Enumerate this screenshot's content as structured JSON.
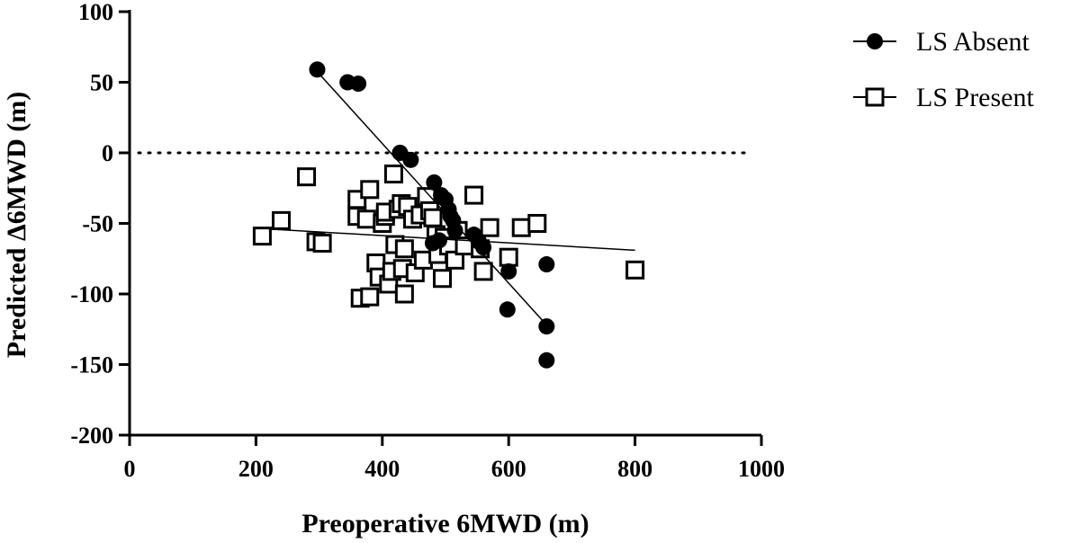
{
  "chart_data": {
    "type": "scatter",
    "title": "",
    "xlabel": "Preoperative 6MWD (m)",
    "ylabel": "Predicted Δ6MWD (m)",
    "xlim": [
      0,
      1000
    ],
    "ylim": [
      -200,
      100
    ],
    "xticks": [
      0,
      200,
      400,
      600,
      800,
      1000
    ],
    "yticks": [
      100,
      50,
      0,
      -50,
      -100,
      -150,
      -200
    ],
    "reference_line_y": 0,
    "legend_position": "top-right",
    "series": [
      {
        "name": "LS Absent",
        "marker": "filled-circle",
        "color": "#000000",
        "trendline": {
          "x": [
            300,
            660
          ],
          "y": [
            56,
            -122
          ]
        },
        "points": [
          [
            297,
            59
          ],
          [
            345,
            50
          ],
          [
            362,
            49
          ],
          [
            428,
            0
          ],
          [
            445,
            -5
          ],
          [
            482,
            -21
          ],
          [
            493,
            -30
          ],
          [
            500,
            -33
          ],
          [
            505,
            -40
          ],
          [
            508,
            -45
          ],
          [
            512,
            -48
          ],
          [
            515,
            -55
          ],
          [
            490,
            -62
          ],
          [
            480,
            -64
          ],
          [
            545,
            -58
          ],
          [
            553,
            -63
          ],
          [
            560,
            -67
          ],
          [
            600,
            -84
          ],
          [
            598,
            -111
          ],
          [
            660,
            -79
          ],
          [
            660,
            -123
          ],
          [
            660,
            -147
          ]
        ]
      },
      {
        "name": "LS Present",
        "marker": "open-square",
        "color": "#000000",
        "trendline": {
          "x": [
            220,
            800
          ],
          "y": [
            -54,
            -69
          ]
        },
        "points": [
          [
            210,
            -59
          ],
          [
            240,
            -48
          ],
          [
            280,
            -17
          ],
          [
            295,
            -63
          ],
          [
            305,
            -64
          ],
          [
            360,
            -33
          ],
          [
            360,
            -45
          ],
          [
            365,
            -103
          ],
          [
            375,
            -47
          ],
          [
            380,
            -102
          ],
          [
            380,
            -26
          ],
          [
            390,
            -78
          ],
          [
            395,
            -88
          ],
          [
            400,
            -50
          ],
          [
            405,
            -45
          ],
          [
            405,
            -42
          ],
          [
            410,
            -93
          ],
          [
            415,
            -84
          ],
          [
            418,
            -15
          ],
          [
            420,
            -65
          ],
          [
            425,
            -40
          ],
          [
            430,
            -36
          ],
          [
            432,
            -82
          ],
          [
            435,
            -68
          ],
          [
            435,
            -100
          ],
          [
            440,
            -38
          ],
          [
            448,
            -47
          ],
          [
            452,
            -85
          ],
          [
            460,
            -44
          ],
          [
            465,
            -76
          ],
          [
            470,
            -31
          ],
          [
            475,
            -41
          ],
          [
            480,
            -46
          ],
          [
            485,
            -58
          ],
          [
            488,
            -72
          ],
          [
            495,
            -89
          ],
          [
            498,
            -60
          ],
          [
            505,
            -66
          ],
          [
            515,
            -76
          ],
          [
            520,
            -55
          ],
          [
            530,
            -66
          ],
          [
            545,
            -30
          ],
          [
            555,
            -68
          ],
          [
            560,
            -84
          ],
          [
            570,
            -53
          ],
          [
            600,
            -74
          ],
          [
            620,
            -53
          ],
          [
            645,
            -50
          ],
          [
            800,
            -83
          ]
        ]
      }
    ]
  }
}
